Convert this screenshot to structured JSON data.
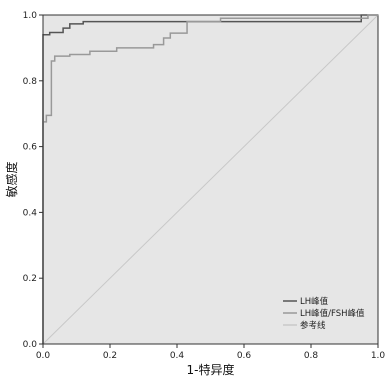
{
  "chart_data": {
    "type": "line",
    "xlabel": "1-特异度",
    "ylabel": "敏感度",
    "xlim": [
      0.0,
      1.0
    ],
    "ylim": [
      0.0,
      1.0
    ],
    "x_ticks": [
      "0.0",
      "0.2",
      "0.4",
      "0.6",
      "0.8",
      "1.0"
    ],
    "y_ticks": [
      "0.0",
      "0.2",
      "0.4",
      "0.6",
      "0.8",
      "1.0"
    ],
    "grid": false,
    "legend_position": "bottom-right",
    "series": [
      {
        "name": "LH峰值",
        "color": "#555555",
        "points": [
          [
            0.0,
            0.0
          ],
          [
            0.0,
            0.94
          ],
          [
            0.02,
            0.94
          ],
          [
            0.02,
            0.947
          ],
          [
            0.06,
            0.947
          ],
          [
            0.06,
            0.96
          ],
          [
            0.08,
            0.96
          ],
          [
            0.08,
            0.973
          ],
          [
            0.12,
            0.973
          ],
          [
            0.12,
            0.98
          ],
          [
            0.95,
            0.98
          ],
          [
            0.95,
            1.0
          ],
          [
            1.0,
            1.0
          ]
        ]
      },
      {
        "name": "LH峰值/FSH峰值",
        "color": "#999999",
        "points": [
          [
            0.0,
            0.0
          ],
          [
            0.0,
            0.675
          ],
          [
            0.01,
            0.675
          ],
          [
            0.01,
            0.695
          ],
          [
            0.025,
            0.695
          ],
          [
            0.025,
            0.86
          ],
          [
            0.035,
            0.86
          ],
          [
            0.035,
            0.875
          ],
          [
            0.08,
            0.875
          ],
          [
            0.08,
            0.88
          ],
          [
            0.14,
            0.88
          ],
          [
            0.14,
            0.89
          ],
          [
            0.22,
            0.89
          ],
          [
            0.22,
            0.9
          ],
          [
            0.33,
            0.9
          ],
          [
            0.33,
            0.91
          ],
          [
            0.36,
            0.91
          ],
          [
            0.36,
            0.93
          ],
          [
            0.38,
            0.93
          ],
          [
            0.38,
            0.945
          ],
          [
            0.43,
            0.945
          ],
          [
            0.43,
            0.98
          ],
          [
            0.53,
            0.98
          ],
          [
            0.53,
            0.99
          ],
          [
            0.97,
            0.99
          ],
          [
            0.97,
            1.0
          ],
          [
            1.0,
            1.0
          ]
        ]
      },
      {
        "name": "参考线",
        "color": "#c8c8c8",
        "points": [
          [
            0.0,
            0.0
          ],
          [
            1.0,
            1.0
          ]
        ]
      }
    ]
  },
  "colors": {
    "plot_background": "#e6e6e6",
    "axis_color": "#333333"
  }
}
